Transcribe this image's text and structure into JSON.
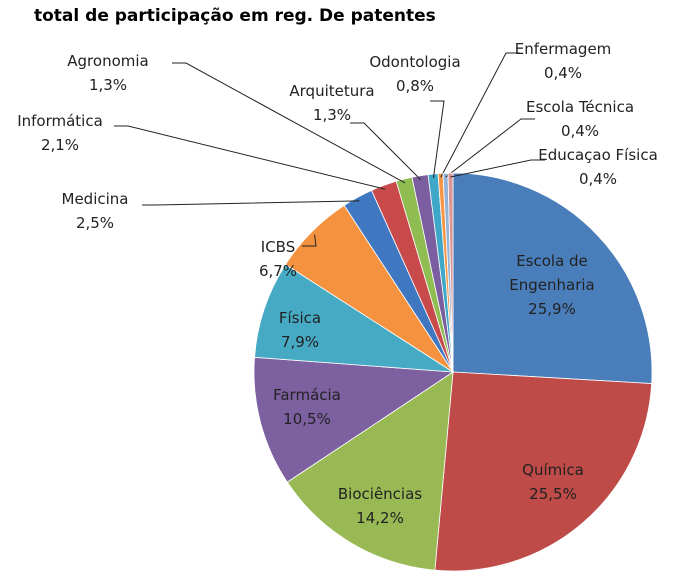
{
  "chart_data": {
    "type": "pie",
    "title": "total de participação em reg. De patentes",
    "categories": [
      "Escola de Engenharia",
      "Química",
      "Biociências",
      "Farmácia",
      "Física",
      "ICBS",
      "Medicina",
      "Informática",
      "Agronomia",
      "Arquitetura",
      "Odontologia",
      "Enfermagem",
      "Escola Técnica",
      "Educaçao Física"
    ],
    "values": [
      25.9,
      25.5,
      14.2,
      10.5,
      7.9,
      6.7,
      2.5,
      2.1,
      1.3,
      1.3,
      0.8,
      0.4,
      0.4,
      0.4
    ],
    "value_labels": [
      "25,9%",
      "25,5%",
      "14,2%",
      "10,5%",
      "7,9%",
      "6,7%",
      "2,5%",
      "2,1%",
      "1,3%",
      "1,3%",
      "0,8%",
      "0,4%",
      "0,4%",
      "0,4%"
    ],
    "colors": [
      "#4a7ebb",
      "#be4b48",
      "#98b954",
      "#7d60a0",
      "#46aac5",
      "#f59240",
      "#3f78c0",
      "#c84a4a",
      "#8fbd52",
      "#7a5ea0",
      "#3fa7c8",
      "#f79646",
      "#95b3d7",
      "#d99694"
    ]
  }
}
